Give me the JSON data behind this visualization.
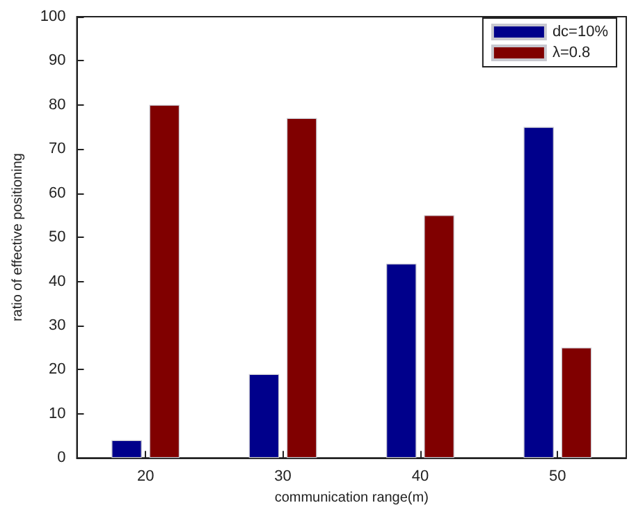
{
  "chart_data": {
    "type": "bar",
    "xlabel": "communication range(m)",
    "ylabel": "ratio of effective positioning",
    "categories": [
      "20",
      "30",
      "40",
      "50"
    ],
    "series": [
      {
        "name": "dc=10%",
        "color": "#00008b",
        "values": [
          4,
          19,
          44,
          75
        ]
      },
      {
        "name": "λ=0.8",
        "color": "#800000",
        "values": [
          80,
          77,
          55,
          25
        ]
      }
    ],
    "ylim": [
      0,
      100
    ],
    "yticks": [
      0,
      10,
      20,
      30,
      40,
      50,
      60,
      70,
      80,
      90,
      100
    ],
    "grid": false,
    "legend": "top right"
  }
}
